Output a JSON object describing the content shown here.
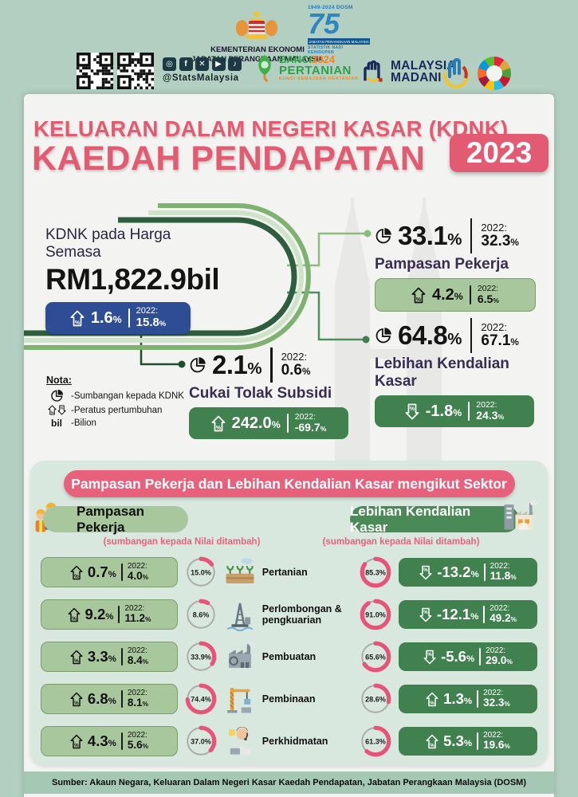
{
  "header": {
    "ministry_line1": "KEMENTERIAN EKONOMI",
    "ministry_line2": "JABATAN PERANGKAAN MALAYSIA",
    "dosm75": {
      "years": "1949-2024",
      "org": "DOSM",
      "num": "75",
      "sub1": "JABATAN PERANGKAAN MALAYSIA",
      "sub2": "STATISTIK NADI KEHIDUPAN"
    },
    "social_icons": [
      "instagram",
      "facebook",
      "x",
      "youtube",
      "tiktok"
    ],
    "social_handle": "@StatsMalaysia",
    "banci": {
      "word1": "BANCI",
      "year": "2024",
      "word2": "PERTANIAN",
      "tagline": "KUNCI KEMAJUAN PERTANIAN"
    },
    "madani": {
      "line1": "MALAYSIA",
      "line2": "MADANI"
    }
  },
  "title": {
    "line1": "KELUARAN DALAM NEGERI KASAR (KDNK)",
    "line2": "KAEDAH PENDAPATAN",
    "year": "2023"
  },
  "kdnk": {
    "label": "KDNK pada Harga Semasa",
    "value": "RM1,822.9bil",
    "growth": "1.6%",
    "prev_label": "2022:",
    "prev": "15.8%"
  },
  "components": [
    {
      "share": "33.1%",
      "prev_share": "32.3%",
      "name": "Pampasan Pekerja",
      "growth": "4.2%",
      "prev_growth": "6.5%"
    },
    {
      "share": "64.8%",
      "prev_share": "67.1%",
      "name": "Lebihan Kendalian Kasar",
      "growth": "-1.8%",
      "prev_growth": "24.3%"
    },
    {
      "share": "2.1%",
      "prev_share": "0.6%",
      "name": "Cukai Tolak Subsidi",
      "growth": "242.0%",
      "prev_growth": "-69.7%"
    }
  ],
  "nota": {
    "title": "Nota:",
    "pie_text": "-Sumbangan kepada KDNK",
    "arrows_text": "-Peratus pertumbuhan",
    "bil_label": "bil",
    "bil_text": "-Bilion"
  },
  "sectors": {
    "banner": "Pampasan Pekerja dan Lebihan Kendalian Kasar mengikut Sektor",
    "left_header": "Pampasan Pekerja",
    "right_header": "Lebihan Kendalian Kasar",
    "left_caption": "(sumbangan kepada Nilai ditambah)",
    "right_caption": "(sumbangan kepada Nilai ditambah)",
    "prev_label": "2022:",
    "rows": [
      {
        "sector": "Pertanian",
        "icon": "farm",
        "cc_growth": "0.7%",
        "cc_prev": "4.0%",
        "cc_share": "15.0%",
        "gos_share": "85.3%",
        "gos_growth": "-13.2%",
        "gos_prev": "11.8%"
      },
      {
        "sector": "Perlombongan & pengkuarian",
        "icon": "rig",
        "cc_growth": "9.2%",
        "cc_prev": "11.2%",
        "cc_share": "8.6%",
        "gos_share": "91.0%",
        "gos_growth": "-12.1%",
        "gos_prev": "49.2%"
      },
      {
        "sector": "Pembuatan",
        "icon": "factory",
        "cc_growth": "3.3%",
        "cc_prev": "8.4%",
        "cc_share": "33.9%",
        "gos_share": "65.6%",
        "gos_growth": "-5.6%",
        "gos_prev": "29.0%"
      },
      {
        "sector": "Pembinaan",
        "icon": "crane",
        "cc_growth": "6.8%",
        "cc_prev": "8.1%",
        "cc_share": "74.4%",
        "gos_share": "28.6%",
        "gos_growth": "1.3%",
        "gos_prev": "32.3%"
      },
      {
        "sector": "Perkhidmatan",
        "icon": "service",
        "cc_growth": "4.3%",
        "cc_prev": "5.6%",
        "cc_share": "37.0%",
        "gos_share": "61.3%",
        "gos_growth": "5.3%",
        "gos_prev": "19.6%"
      }
    ]
  },
  "footer": "Sumber: Akaun Negara, Keluaran Dalam Negeri Kasar Kaedah Pendapatan, Jabatan Perangkaan Malaysia (DOSM)",
  "chart_data": [
    {
      "type": "pie",
      "title": "Sumbangan kepada KDNK 2023 (%)",
      "categories": [
        "Pampasan Pekerja",
        "Lebihan Kendalian Kasar",
        "Cukai Tolak Subsidi"
      ],
      "values": [
        33.1,
        64.8,
        2.1
      ],
      "values_2022": [
        32.3,
        67.1,
        0.6
      ]
    },
    {
      "type": "bar",
      "title": "KDNK Kaedah Pendapatan - pertumbuhan (%), KDNK pada Harga Semasa RM1,822.9 bilion",
      "categories": [
        "KDNK pada Harga Semasa",
        "Pampasan Pekerja",
        "Lebihan Kendalian Kasar",
        "Cukai Tolak Subsidi"
      ],
      "series": [
        {
          "name": "2023",
          "values": [
            1.6,
            4.2,
            -1.8,
            242.0
          ]
        },
        {
          "name": "2022",
          "values": [
            15.8,
            6.5,
            24.3,
            -69.7
          ]
        }
      ]
    },
    {
      "type": "bar",
      "title": "Pampasan Pekerja dan Lebihan Kendalian Kasar mengikut Sektor (%)",
      "categories": [
        "Pertanian",
        "Perlombongan & pengkuarian",
        "Pembuatan",
        "Pembinaan",
        "Perkhidmatan"
      ],
      "series": [
        {
          "name": "Pampasan Pekerja - sumbangan kepada Nilai ditambah 2023",
          "values": [
            15.0,
            8.6,
            33.9,
            74.4,
            37.0
          ]
        },
        {
          "name": "Pampasan Pekerja - pertumbuhan 2023",
          "values": [
            0.7,
            9.2,
            3.3,
            6.8,
            4.3
          ]
        },
        {
          "name": "Pampasan Pekerja - pertumbuhan 2022",
          "values": [
            4.0,
            11.2,
            8.4,
            8.1,
            5.6
          ]
        },
        {
          "name": "Lebihan Kendalian Kasar - sumbangan kepada Nilai ditambah 2023",
          "values": [
            85.3,
            91.0,
            65.6,
            28.6,
            61.3
          ]
        },
        {
          "name": "Lebihan Kendalian Kasar - pertumbuhan 2023",
          "values": [
            -13.2,
            -12.1,
            -5.6,
            1.3,
            5.3
          ]
        },
        {
          "name": "Lebihan Kendalian Kasar - pertumbuhan 2022",
          "values": [
            11.8,
            49.2,
            29.0,
            32.3,
            19.6
          ]
        }
      ]
    }
  ]
}
